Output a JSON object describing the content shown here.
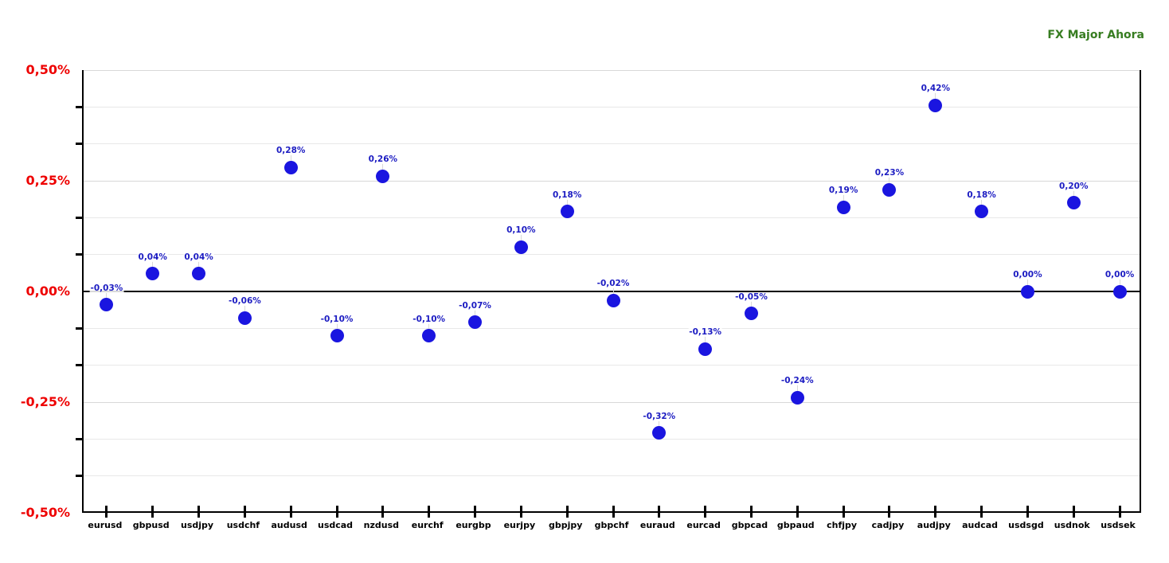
{
  "chart_data": {
    "type": "scatter",
    "title": "FX Major Ahora",
    "categories": [
      "eurusd",
      "gbpusd",
      "usdjpy",
      "usdchf",
      "audusd",
      "usdcad",
      "nzdusd",
      "eurchf",
      "eurgbp",
      "eurjpy",
      "gbpjpy",
      "gbpchf",
      "euraud",
      "eurcad",
      "gbpcad",
      "gbpaud",
      "chfjpy",
      "cadjpy",
      "audjpy",
      "audcad",
      "usdsgd",
      "usdnok",
      "usdsek"
    ],
    "values": [
      -0.03,
      0.04,
      0.04,
      -0.06,
      0.28,
      -0.1,
      0.26,
      -0.1,
      -0.07,
      0.1,
      0.18,
      -0.02,
      -0.32,
      -0.13,
      -0.05,
      -0.24,
      0.19,
      0.23,
      0.42,
      0.18,
      0.0,
      0.2,
      0.0
    ],
    "point_labels": [
      "-0,03%",
      "0,04%",
      "0,04%",
      "-0,06%",
      "0,28%",
      "-0,10%",
      "0,26%",
      "-0,10%",
      "-0,07%",
      "0,10%",
      "0,18%",
      "-0,02%",
      "-0,32%",
      "-0,13%",
      "-0,05%",
      "-0,24%",
      "0,19%",
      "0,23%",
      "0,42%",
      "0,18%",
      "0,00%",
      "0,20%",
      "0,00%"
    ],
    "xlabel": "",
    "ylabel": "",
    "ylim": [
      -0.5,
      0.5
    ],
    "y_tick_labels": [
      "0,50%",
      "0,25%",
      "0,00%",
      "-0,25%",
      "-0,50%"
    ],
    "minor_gridlines_per_major": 3,
    "grid": "horizontal-only",
    "legend": "none",
    "colors": {
      "point": "#1A15E0",
      "point_label": "#1C1CC2",
      "y_tick_label": "#EE0000",
      "x_tick_label": "#000000",
      "title": "#377D21",
      "grid_major": "#D8D8D8",
      "grid_minor": "#E8E8E8",
      "zero_line": "#000000",
      "axis": "#000000",
      "leader_line": "#D9D9D9"
    }
  }
}
